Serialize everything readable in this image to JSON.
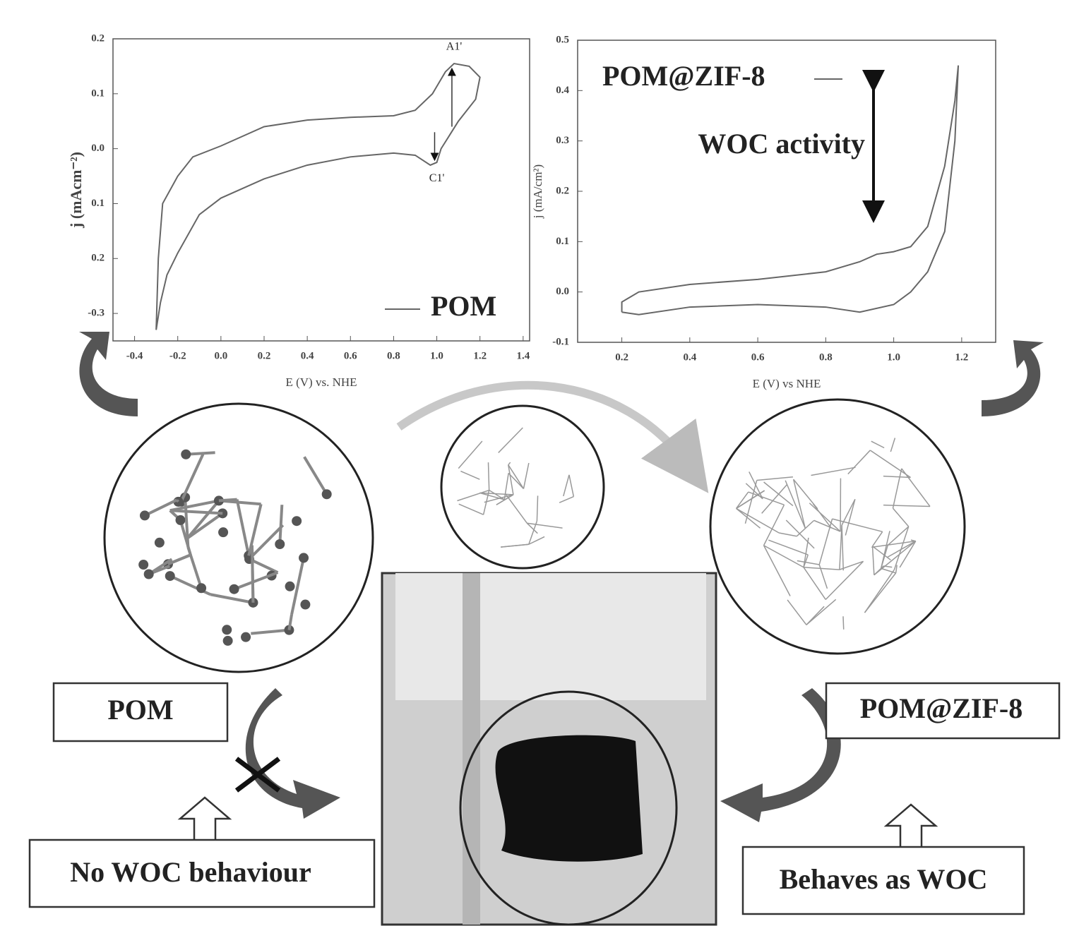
{
  "chart_data": [
    {
      "type": "line",
      "ylabel": "j (mAcm⁻²)",
      "xlabel": "E (V) vs. NHE",
      "xlim": [
        -0.5,
        1.43
      ],
      "ylim": [
        -0.35,
        0.2
      ],
      "xticks": [
        -0.4,
        -0.2,
        {
          "value": 0,
          "label": "0.0"
        },
        0.2,
        0.4,
        0.6,
        0.8,
        {
          "value": 1,
          "label": "1.0"
        },
        1.2,
        1.4
      ],
      "yticks": [
        0.2,
        0.1,
        {
          "value": 0,
          "label": "0.0"
        },
        {
          "value": -0.1,
          "label": "0.1"
        },
        {
          "value": -0.2,
          "label": "0.2"
        },
        -0.3
      ],
      "x": [
        -0.3,
        -0.29,
        -0.27,
        -0.2,
        -0.13,
        0,
        0.2,
        0.4,
        0.6,
        0.8,
        0.9,
        0.98,
        1.04,
        1.08,
        1.15,
        1.2,
        1.18,
        1.1,
        1.02,
        1.0,
        0.97,
        0.9,
        0.8,
        0.6,
        0.4,
        0.2,
        0.0,
        -0.1,
        -0.2,
        -0.25,
        -0.28,
        -0.3
      ],
      "series": [
        {
          "name": "POM",
          "color": "#666666",
          "values": [
            -0.33,
            -0.2,
            -0.1,
            -0.05,
            -0.015,
            0.005,
            0.04,
            0.052,
            0.057,
            0.06,
            0.07,
            0.1,
            0.14,
            0.155,
            0.15,
            0.13,
            0.09,
            0.05,
            0.0,
            -0.025,
            -0.03,
            -0.012,
            -0.008,
            -0.015,
            -0.03,
            -0.055,
            -0.09,
            -0.12,
            -0.19,
            -0.23,
            -0.28,
            -0.33
          ]
        }
      ],
      "legend": "lower right",
      "annotations": [
        "A1'",
        "C1'"
      ]
    },
    {
      "type": "line",
      "ylabel": "j (mA/cm²)",
      "xlabel": "E (V) vs NHE",
      "xlim": [
        0.07,
        1.3
      ],
      "ylim": [
        -0.1,
        0.5
      ],
      "xticks": [
        0.2,
        0.4,
        0.6,
        0.8,
        {
          "value": 1,
          "label": "1.0"
        },
        1.2
      ],
      "yticks": [
        0.5,
        0.4,
        0.3,
        0.2,
        0.1,
        {
          "value": 0,
          "label": "0.0"
        },
        -0.1
      ],
      "x": [
        0.2,
        0.2,
        0.25,
        0.4,
        0.6,
        0.8,
        0.9,
        0.95,
        1.0,
        1.05,
        1.1,
        1.15,
        1.18,
        1.19,
        1.18,
        1.15,
        1.1,
        1.05,
        1.0,
        0.9,
        0.8,
        0.6,
        0.4,
        0.25,
        0.2
      ],
      "series": [
        {
          "name": "POM@ZIF-8",
          "color": "#666666",
          "values": [
            -0.04,
            -0.02,
            0.0,
            0.015,
            0.025,
            0.04,
            0.06,
            0.075,
            0.08,
            0.09,
            0.13,
            0.25,
            0.38,
            0.45,
            0.3,
            0.12,
            0.04,
            0.0,
            -0.025,
            -0.04,
            -0.03,
            -0.025,
            -0.03,
            -0.045,
            -0.04
          ]
        }
      ],
      "legend": "upper left",
      "annotations": [
        "WOC activity"
      ]
    }
  ],
  "boxes": {
    "pom": "POM",
    "no_woc": "No WOC behaviour",
    "pom_zif": "POM@ZIF-8",
    "behaves": "Behaves as WOC"
  }
}
